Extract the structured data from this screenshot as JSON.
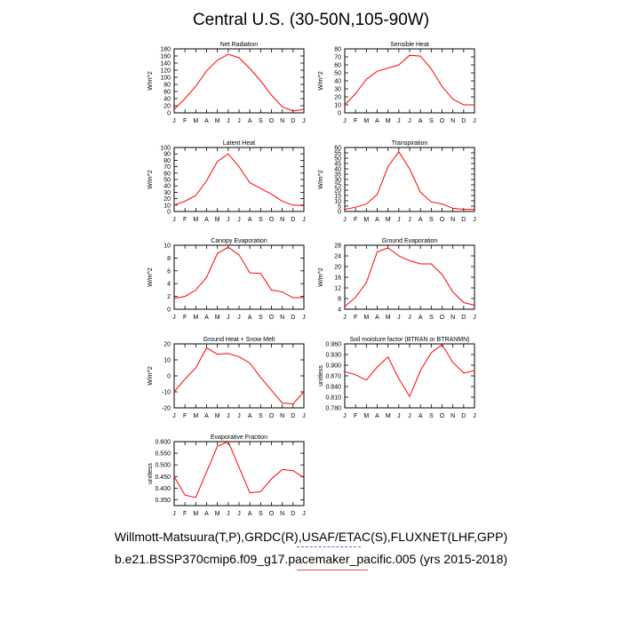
{
  "title": "Central U.S. (30-50N,105-90W)",
  "footer_line1": "Willmott-Matsuura(T,P),GRDC(R),USAF/ETAC(S),FLUXNET(LHF,GPP)",
  "footer_line2": "b.e21.BSSP370cmip6.f09_g17.pacemaker_pacific.005 (yrs 2015-2018)",
  "colors": {
    "line": "#ff0000",
    "axis": "#000000",
    "footer_dash": "#6a6ad0",
    "footer_underline": "#e05050"
  },
  "chart_data": [
    {
      "type": "line",
      "title": "Net Radiation",
      "ylabel": "W/m^2",
      "categories": [
        "J",
        "F",
        "M",
        "A",
        "M",
        "J",
        "J",
        "A",
        "S",
        "O",
        "N",
        "D",
        "J"
      ],
      "ylim": [
        0,
        180
      ],
      "yticks": [
        "0",
        "20",
        "40",
        "60",
        "80",
        "100",
        "120",
        "140",
        "160",
        "180"
      ],
      "values": [
        10,
        40,
        75,
        118,
        148,
        165,
        155,
        125,
        90,
        50,
        17,
        5,
        10
      ]
    },
    {
      "type": "line",
      "title": "Sensible Heat",
      "ylabel": "W/m^2",
      "categories": [
        "J",
        "F",
        "M",
        "A",
        "M",
        "J",
        "J",
        "A",
        "S",
        "O",
        "N",
        "D",
        "J"
      ],
      "ylim": [
        0,
        80
      ],
      "yticks": [
        "0",
        "10",
        "20",
        "30",
        "40",
        "50",
        "60",
        "70",
        "80"
      ],
      "values": [
        10,
        24,
        42,
        52,
        56,
        60,
        72,
        71,
        55,
        33,
        17,
        10,
        10
      ]
    },
    {
      "type": "line",
      "title": "Latent Heat",
      "ylabel": "W/m^2",
      "categories": [
        "J",
        "F",
        "M",
        "A",
        "M",
        "J",
        "J",
        "A",
        "S",
        "O",
        "N",
        "D",
        "J"
      ],
      "ylim": [
        0,
        100
      ],
      "yticks": [
        "0",
        "10",
        "20",
        "30",
        "40",
        "50",
        "60",
        "70",
        "80",
        "90",
        "100"
      ],
      "values": [
        10,
        16,
        25,
        48,
        78,
        90,
        70,
        45,
        36,
        27,
        16,
        10,
        9
      ]
    },
    {
      "type": "line",
      "title": "Transpiration",
      "ylabel": "W/m^2",
      "categories": [
        "J",
        "F",
        "M",
        "A",
        "M",
        "J",
        "J",
        "A",
        "S",
        "O",
        "N",
        "D",
        "J"
      ],
      "ylim": [
        0,
        60
      ],
      "yticks": [
        "0",
        "5",
        "10",
        "15",
        "20",
        "25",
        "30",
        "35",
        "40",
        "45",
        "50",
        "55",
        "60"
      ],
      "values": [
        2,
        4,
        7,
        16,
        42,
        56,
        40,
        18,
        9,
        7,
        3,
        2,
        2
      ]
    },
    {
      "type": "line",
      "title": "Canopy Evaporation",
      "ylabel": "W/m^2",
      "categories": [
        "J",
        "F",
        "M",
        "A",
        "M",
        "J",
        "J",
        "A",
        "S",
        "O",
        "N",
        "D",
        "J"
      ],
      "ylim": [
        0,
        10
      ],
      "yticks": [
        "0",
        "2",
        "4",
        "6",
        "8",
        "10"
      ],
      "values": [
        1.7,
        2.0,
        3.0,
        5.0,
        8.7,
        9.7,
        8.5,
        5.7,
        5.6,
        3.0,
        2.7,
        1.8,
        1.8
      ]
    },
    {
      "type": "line",
      "title": "Ground Evaporation",
      "ylabel": "W/m^2",
      "categories": [
        "J",
        "F",
        "M",
        "A",
        "M",
        "J",
        "J",
        "A",
        "S",
        "O",
        "N",
        "D",
        "J"
      ],
      "ylim": [
        4,
        28
      ],
      "yticks": [
        "4",
        "8",
        "12",
        "16",
        "20",
        "24",
        "28"
      ],
      "values": [
        5,
        8.5,
        14,
        25.5,
        27,
        24,
        22.2,
        21,
        21,
        17,
        10.5,
        6.5,
        5.5
      ]
    },
    {
      "type": "line",
      "title": "Ground Heat + Snow Melt",
      "ylabel": "W/m^2",
      "categories": [
        "J",
        "F",
        "M",
        "A",
        "M",
        "J",
        "J",
        "A",
        "S",
        "O",
        "N",
        "D",
        "J"
      ],
      "ylim": [
        -20,
        20
      ],
      "yticks": [
        "-20",
        "-10",
        "0",
        "10",
        "20"
      ],
      "values": [
        -10,
        -2,
        5,
        17.5,
        13.5,
        14,
        12,
        8,
        -1,
        -9,
        -17,
        -17.5,
        -10
      ]
    },
    {
      "type": "line",
      "title": "Soil moisture factor (BTRAN or BTRANMN)",
      "ylabel": "unitless",
      "categories": [
        "J",
        "F",
        "M",
        "A",
        "M",
        "J",
        "J",
        "A",
        "S",
        "O",
        "N",
        "D",
        "J"
      ],
      "ylim": [
        0.78,
        0.96
      ],
      "yticks": [
        "0.780",
        "0.810",
        "0.840",
        "0.870",
        "0.900",
        "0.930",
        "0.960"
      ],
      "values": [
        0.882,
        0.873,
        0.858,
        0.895,
        0.923,
        0.862,
        0.812,
        0.885,
        0.935,
        0.958,
        0.908,
        0.878,
        0.885
      ]
    },
    {
      "type": "line",
      "title": "Evaporative Fraction",
      "ylabel": "unitless",
      "categories": [
        "J",
        "F",
        "M",
        "A",
        "M",
        "J",
        "J",
        "A",
        "S",
        "O",
        "N",
        "D",
        "J"
      ],
      "ylim": [
        0.325,
        0.6
      ],
      "yticks": [
        "0.350",
        "0.400",
        "0.450",
        "0.500",
        "0.550",
        "0.600"
      ],
      "values": [
        0.45,
        0.37,
        0.36,
        0.47,
        0.58,
        0.6,
        0.49,
        0.38,
        0.385,
        0.44,
        0.48,
        0.475,
        0.445
      ]
    }
  ]
}
